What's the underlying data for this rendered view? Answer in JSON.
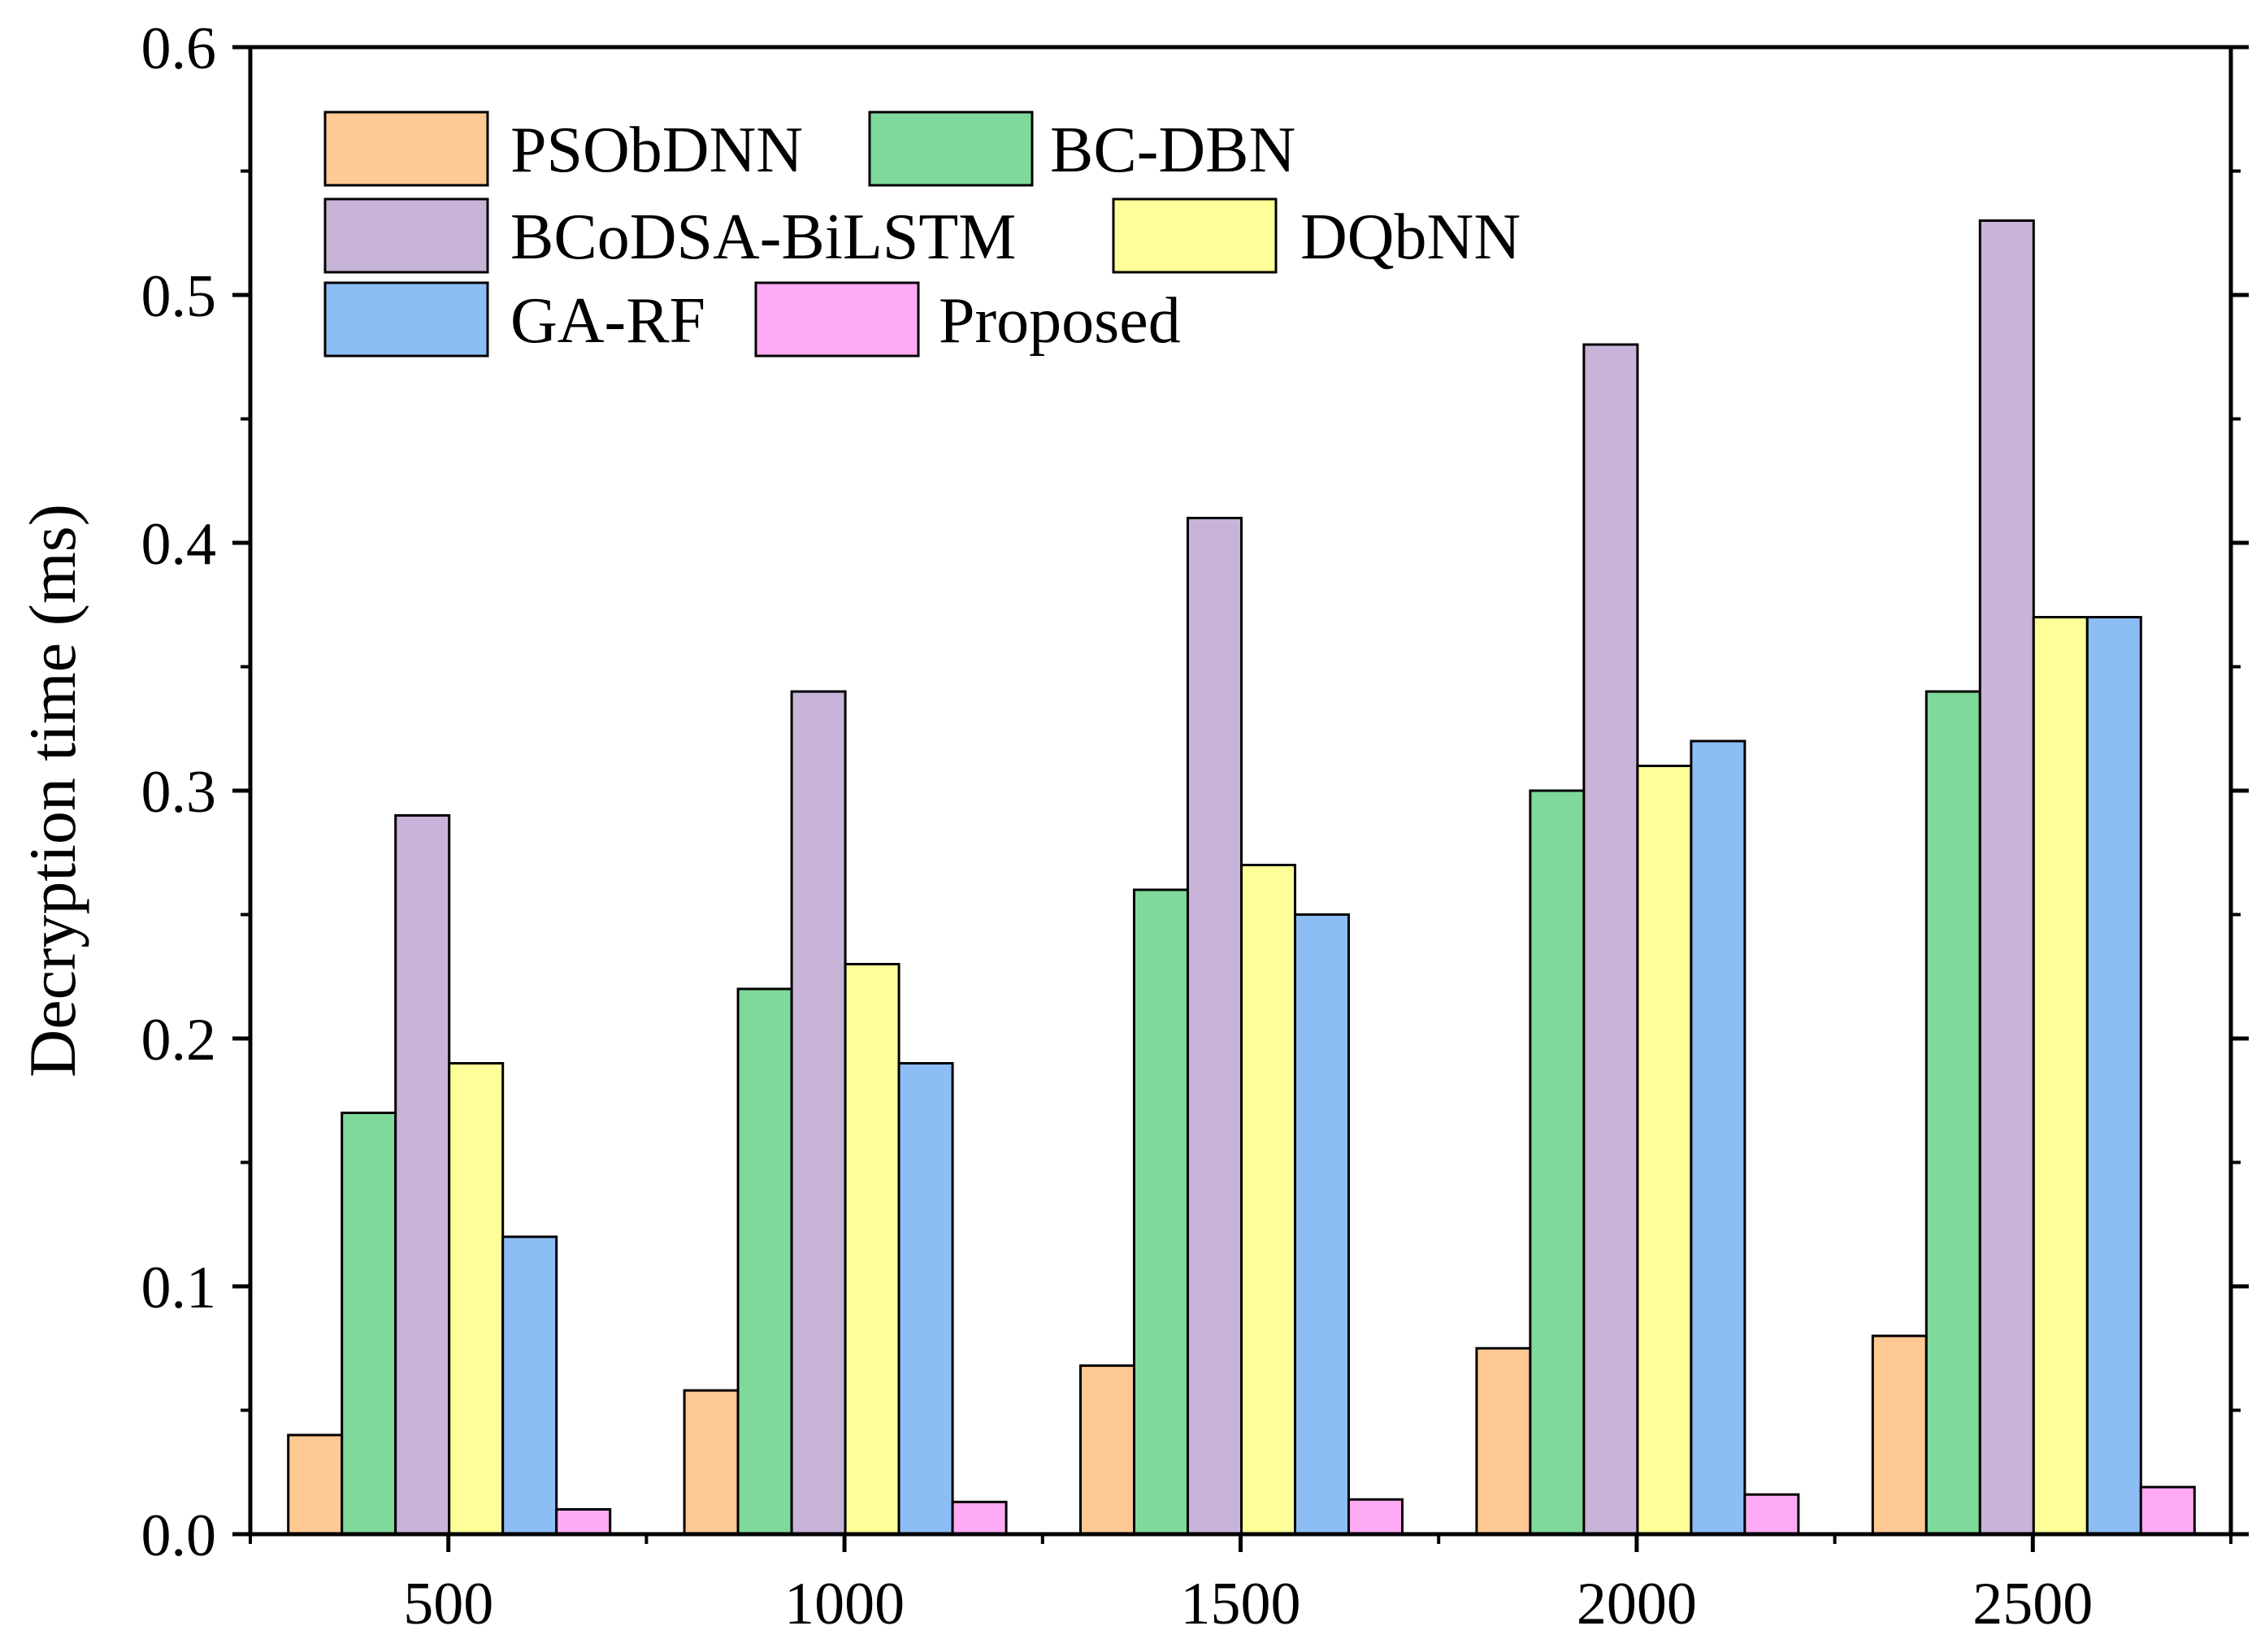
{
  "chart_data": {
    "type": "bar",
    "title": "",
    "xlabel": "",
    "ylabel": "Decryption time (ms)",
    "categories": [
      "500",
      "1000",
      "1500",
      "2000",
      "2500"
    ],
    "ylim": [
      0.0,
      0.6
    ],
    "yticks": [
      "0.0",
      "0.1",
      "0.2",
      "0.3",
      "0.4",
      "0.5",
      "0.6"
    ],
    "grid": false,
    "legend_position": "top-left",
    "series": [
      {
        "name": "PSObDNN",
        "color": "#FFC994",
        "values": [
          0.04,
          0.058,
          0.068,
          0.075,
          0.08
        ]
      },
      {
        "name": "BC-DBN",
        "color": "#7FD99A",
        "values": [
          0.17,
          0.22,
          0.26,
          0.3,
          0.34
        ]
      },
      {
        "name": "BCoDSA-BiLSTM",
        "color": "#C8B3D9",
        "values": [
          0.29,
          0.34,
          0.41,
          0.48,
          0.53
        ]
      },
      {
        "name": "DQbNN",
        "color": "#FFFF99",
        "values": [
          0.19,
          0.23,
          0.27,
          0.31,
          0.37
        ]
      },
      {
        "name": "GA-RF",
        "color": "#8DBDF5",
        "values": [
          0.12,
          0.19,
          0.25,
          0.32,
          0.37
        ]
      },
      {
        "name": "Proposed",
        "color": "#FFAAF5",
        "values": [
          0.01,
          0.013,
          0.014,
          0.016,
          0.019
        ]
      }
    ]
  }
}
